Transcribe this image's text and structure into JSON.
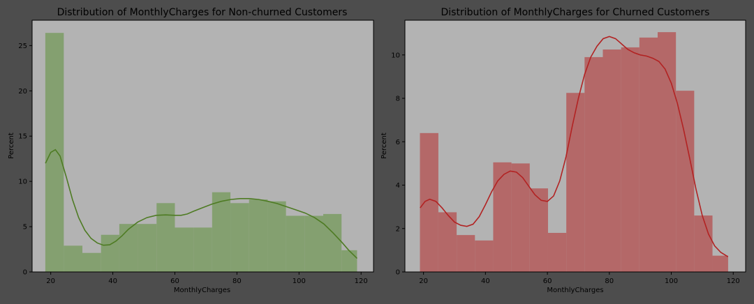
{
  "figure": {
    "background": "#4d4d4d"
  },
  "chart_data": [
    {
      "type": "bar",
      "title": "Distribution of MonthlyCharges for Non-churned Customers",
      "xlabel": "MonthlyCharges",
      "ylabel": "Percent",
      "xlim": [
        14,
        124
      ],
      "ylim": [
        0,
        27.8
      ],
      "xticks": [
        20,
        40,
        60,
        80,
        100,
        120
      ],
      "yticks": [
        0,
        5,
        10,
        15,
        20,
        25
      ],
      "grid": false,
      "legend": "none",
      "bar_color": "#84a070",
      "line_color": "#4e7b23",
      "bins": [
        {
          "x0": 18.25,
          "x1": 24.2,
          "value": 26.4
        },
        {
          "x0": 24.2,
          "x1": 30.2,
          "value": 2.9
        },
        {
          "x0": 30.2,
          "x1": 36.2,
          "value": 2.1
        },
        {
          "x0": 36.2,
          "x1": 42.1,
          "value": 4.1
        },
        {
          "x0": 42.1,
          "x1": 48.1,
          "value": 5.3
        },
        {
          "x0": 48.1,
          "x1": 54.1,
          "value": 5.3
        },
        {
          "x0": 54.1,
          "x1": 60.0,
          "value": 7.6
        },
        {
          "x0": 60.0,
          "x1": 66.0,
          "value": 4.9
        },
        {
          "x0": 66.0,
          "x1": 72.0,
          "value": 4.9
        },
        {
          "x0": 72.0,
          "x1": 77.9,
          "value": 8.8
        },
        {
          "x0": 77.9,
          "x1": 83.9,
          "value": 7.6
        },
        {
          "x0": 83.9,
          "x1": 89.9,
          "value": 8.0
        },
        {
          "x0": 89.9,
          "x1": 95.8,
          "value": 7.8
        },
        {
          "x0": 95.8,
          "x1": 101.8,
          "value": 6.2
        },
        {
          "x0": 101.8,
          "x1": 107.8,
          "value": 6.2
        },
        {
          "x0": 107.8,
          "x1": 113.7,
          "value": 6.4
        },
        {
          "x0": 113.7,
          "x1": 118.7,
          "value": 2.4
        }
      ],
      "kde": [
        [
          18.3,
          12.0
        ],
        [
          20,
          13.2
        ],
        [
          21.5,
          13.5
        ],
        [
          23,
          12.8
        ],
        [
          25,
          10.5
        ],
        [
          27,
          8.0
        ],
        [
          29,
          6.0
        ],
        [
          31,
          4.6
        ],
        [
          33,
          3.7
        ],
        [
          35,
          3.2
        ],
        [
          37,
          2.95
        ],
        [
          39,
          3.0
        ],
        [
          41,
          3.4
        ],
        [
          43,
          4.0
        ],
        [
          45,
          4.7
        ],
        [
          48,
          5.5
        ],
        [
          51,
          6.0
        ],
        [
          54,
          6.25
        ],
        [
          57,
          6.3
        ],
        [
          60,
          6.25
        ],
        [
          62,
          6.25
        ],
        [
          64,
          6.4
        ],
        [
          66,
          6.7
        ],
        [
          69,
          7.1
        ],
        [
          72,
          7.5
        ],
        [
          75,
          7.8
        ],
        [
          78,
          8.0
        ],
        [
          81,
          8.1
        ],
        [
          84,
          8.1
        ],
        [
          87,
          8.0
        ],
        [
          90,
          7.8
        ],
        [
          93,
          7.55
        ],
        [
          96,
          7.2
        ],
        [
          99,
          6.85
        ],
        [
          102,
          6.5
        ],
        [
          105,
          6.0
        ],
        [
          108,
          5.3
        ],
        [
          111,
          4.3
        ],
        [
          114,
          3.2
        ],
        [
          116,
          2.4
        ],
        [
          118.7,
          1.5
        ]
      ]
    },
    {
      "type": "bar",
      "title": "Distribution of MonthlyCharges for Churned Customers",
      "xlabel": "MonthlyCharges",
      "ylabel": "Percent",
      "xlim": [
        14,
        124
      ],
      "ylim": [
        0,
        11.6
      ],
      "xticks": [
        20,
        40,
        60,
        80,
        100,
        120
      ],
      "yticks": [
        0,
        2,
        4,
        6,
        8,
        10
      ],
      "grid": false,
      "legend": "none",
      "bar_color": "#b46868",
      "line_color": "#b22222",
      "bins": [
        {
          "x0": 18.85,
          "x1": 24.8,
          "value": 6.4
        },
        {
          "x0": 24.8,
          "x1": 30.7,
          "value": 2.75
        },
        {
          "x0": 30.7,
          "x1": 36.6,
          "value": 1.7
        },
        {
          "x0": 36.6,
          "x1": 42.5,
          "value": 1.45
        },
        {
          "x0": 42.5,
          "x1": 48.4,
          "value": 5.05
        },
        {
          "x0": 48.4,
          "x1": 54.3,
          "value": 5.0
        },
        {
          "x0": 54.3,
          "x1": 60.2,
          "value": 3.85
        },
        {
          "x0": 60.2,
          "x1": 66.1,
          "value": 1.8
        },
        {
          "x0": 66.1,
          "x1": 72.0,
          "value": 8.25
        },
        {
          "x0": 72.0,
          "x1": 77.9,
          "value": 9.9
        },
        {
          "x0": 77.9,
          "x1": 83.8,
          "value": 10.25
        },
        {
          "x0": 83.8,
          "x1": 89.7,
          "value": 10.35
        },
        {
          "x0": 89.7,
          "x1": 95.6,
          "value": 10.8
        },
        {
          "x0": 95.6,
          "x1": 101.5,
          "value": 11.05
        },
        {
          "x0": 101.5,
          "x1": 107.4,
          "value": 8.35
        },
        {
          "x0": 107.4,
          "x1": 113.3,
          "value": 2.6
        },
        {
          "x0": 113.3,
          "x1": 118.35,
          "value": 0.75
        }
      ],
      "kde": [
        [
          18.9,
          2.95
        ],
        [
          20.5,
          3.25
        ],
        [
          22,
          3.35
        ],
        [
          24,
          3.25
        ],
        [
          26,
          2.95
        ],
        [
          28,
          2.6
        ],
        [
          30,
          2.3
        ],
        [
          32,
          2.15
        ],
        [
          34,
          2.1
        ],
        [
          36,
          2.2
        ],
        [
          38,
          2.55
        ],
        [
          40,
          3.1
        ],
        [
          42,
          3.7
        ],
        [
          44,
          4.2
        ],
        [
          46,
          4.5
        ],
        [
          48,
          4.65
        ],
        [
          50,
          4.6
        ],
        [
          52,
          4.35
        ],
        [
          54,
          3.95
        ],
        [
          56,
          3.55
        ],
        [
          58,
          3.3
        ],
        [
          60,
          3.25
        ],
        [
          62,
          3.5
        ],
        [
          64,
          4.2
        ],
        [
          66,
          5.3
        ],
        [
          68,
          6.7
        ],
        [
          70,
          8.0
        ],
        [
          72,
          9.1
        ],
        [
          74,
          9.9
        ],
        [
          76,
          10.4
        ],
        [
          78,
          10.75
        ],
        [
          80,
          10.85
        ],
        [
          82,
          10.75
        ],
        [
          84,
          10.5
        ],
        [
          86,
          10.25
        ],
        [
          88,
          10.1
        ],
        [
          90,
          10.0
        ],
        [
          92,
          9.95
        ],
        [
          94,
          9.85
        ],
        [
          96,
          9.7
        ],
        [
          98,
          9.35
        ],
        [
          100,
          8.7
        ],
        [
          102,
          7.75
        ],
        [
          104,
          6.55
        ],
        [
          106,
          5.2
        ],
        [
          108,
          3.8
        ],
        [
          110,
          2.6
        ],
        [
          112,
          1.75
        ],
        [
          114,
          1.2
        ],
        [
          116,
          0.9
        ],
        [
          118.3,
          0.7
        ]
      ]
    }
  ]
}
